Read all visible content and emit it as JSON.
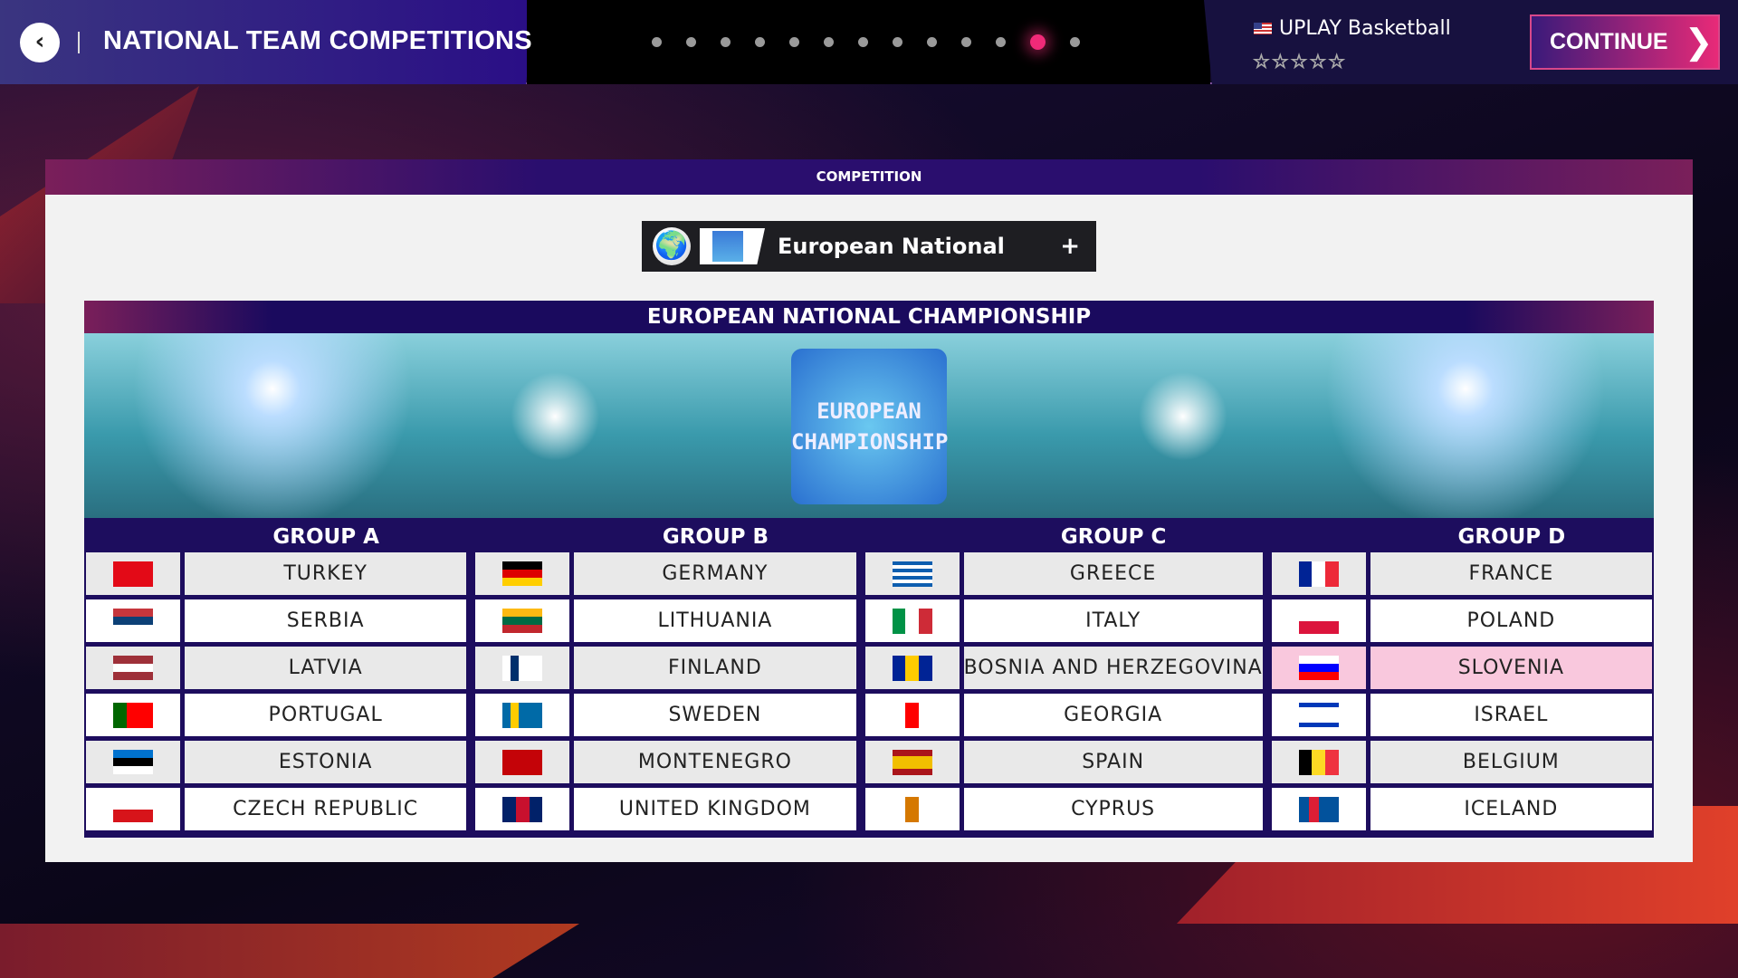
{
  "header": {
    "back_icon": "chevron-left-icon",
    "title": "NATIONAL TEAM COMPETITIONS",
    "steps_total": 13,
    "steps_active": 12,
    "profile": {
      "flag_icon": "us-flag-icon",
      "name": "UPLAY Basketball",
      "stars": "☆☆☆☆☆",
      "rating": 0
    },
    "continue_label": "CONTINUE",
    "continue_icon": "chevron-right-icon"
  },
  "panel": {
    "title": "COMPETITION",
    "selector": {
      "icon": "globe-icon",
      "label": "European National",
      "plus": "+"
    },
    "championship": {
      "title": "EUROPEAN NATIONAL CHAMPIONSHIP",
      "logo_line1": "EUROPEAN",
      "logo_line2": "CHAMPIONSHIP"
    },
    "groups": [
      {
        "title": "GROUP A",
        "teams": [
          {
            "name": "TURKEY",
            "flag": {
              "dir": "row",
              "colors": [
                "#e30a17"
              ]
            }
          },
          {
            "name": "SERBIA",
            "flag": {
              "dir": "column",
              "colors": [
                "#c6363c",
                "#0c4076",
                "#ffffff"
              ]
            }
          },
          {
            "name": "LATVIA",
            "flag": {
              "dir": "column",
              "colors": [
                "#9e3039",
                "#ffffff",
                "#9e3039"
              ]
            }
          },
          {
            "name": "PORTUGAL",
            "flag": {
              "dir": "row",
              "colors": [
                "#006600",
                "#ff0000",
                "#ff0000"
              ]
            }
          },
          {
            "name": "ESTONIA",
            "flag": {
              "dir": "column",
              "colors": [
                "#0072ce",
                "#000000",
                "#ffffff"
              ]
            }
          },
          {
            "name": "CZECH REPUBLIC",
            "flag": {
              "dir": "column",
              "colors": [
                "#ffffff",
                "#d7141a"
              ]
            }
          }
        ]
      },
      {
        "title": "GROUP B",
        "teams": [
          {
            "name": "GERMANY",
            "flag": {
              "dir": "column",
              "colors": [
                "#000000",
                "#dd0000",
                "#ffce00"
              ]
            }
          },
          {
            "name": "LITHUANIA",
            "flag": {
              "dir": "column",
              "colors": [
                "#fdb913",
                "#006a44",
                "#c1272d"
              ]
            }
          },
          {
            "name": "FINLAND",
            "flag": {
              "dir": "row",
              "colors": [
                "#ffffff",
                "#002f6c",
                "#ffffff",
                "#ffffff",
                "#ffffff"
              ]
            }
          },
          {
            "name": "SWEDEN",
            "flag": {
              "dir": "row",
              "colors": [
                "#006aa7",
                "#fecc00",
                "#006aa7",
                "#006aa7",
                "#006aa7"
              ]
            }
          },
          {
            "name": "MONTENEGRO",
            "flag": {
              "dir": "row",
              "colors": [
                "#c40308"
              ]
            }
          },
          {
            "name": "UNITED KINGDOM",
            "flag": {
              "dir": "row",
              "colors": [
                "#012169",
                "#c8102e",
                "#012169"
              ]
            }
          }
        ]
      },
      {
        "title": "GROUP C",
        "teams": [
          {
            "name": "GREECE",
            "flag": {
              "dir": "column",
              "colors": [
                "#0d5eaf",
                "#ffffff",
                "#0d5eaf",
                "#ffffff",
                "#0d5eaf",
                "#ffffff",
                "#0d5eaf"
              ]
            }
          },
          {
            "name": "ITALY",
            "flag": {
              "dir": "row",
              "colors": [
                "#009246",
                "#ffffff",
                "#ce2b37"
              ]
            }
          },
          {
            "name": "BOSNIA AND HERZEGOVINA",
            "flag": {
              "dir": "row",
              "colors": [
                "#002395",
                "#fecb00",
                "#002395"
              ]
            }
          },
          {
            "name": "GEORGIA",
            "flag": {
              "dir": "row",
              "colors": [
                "#ffffff",
                "#ff0000",
                "#ffffff"
              ]
            }
          },
          {
            "name": "SPAIN",
            "flag": {
              "dir": "column",
              "colors": [
                "#aa151b",
                "#f1bf00",
                "#f1bf00",
                "#aa151b"
              ]
            }
          },
          {
            "name": "CYPRUS",
            "flag": {
              "dir": "row",
              "colors": [
                "#ffffff",
                "#d57800",
                "#ffffff"
              ]
            }
          }
        ]
      },
      {
        "title": "GROUP D",
        "teams": [
          {
            "name": "FRANCE",
            "flag": {
              "dir": "row",
              "colors": [
                "#002395",
                "#ffffff",
                "#ed2939"
              ]
            }
          },
          {
            "name": "POLAND",
            "flag": {
              "dir": "column",
              "colors": [
                "#ffffff",
                "#dc143c"
              ]
            }
          },
          {
            "name": "SLOVENIA",
            "flag": {
              "dir": "column",
              "colors": [
                "#ffffff",
                "#0000ff",
                "#ff0000"
              ]
            },
            "selected": true
          },
          {
            "name": "ISRAEL",
            "flag": {
              "dir": "column",
              "colors": [
                "#0038b8",
                "#ffffff",
                "#ffffff",
                "#ffffff",
                "#0038b8"
              ]
            }
          },
          {
            "name": "BELGIUM",
            "flag": {
              "dir": "row",
              "colors": [
                "#000000",
                "#fdda24",
                "#ef3340"
              ]
            }
          },
          {
            "name": "ICELAND",
            "flag": {
              "dir": "row",
              "colors": [
                "#02529c",
                "#dc1e35",
                "#02529c",
                "#02529c"
              ]
            }
          }
        ]
      }
    ]
  },
  "colors": {
    "accent": "#f02a78",
    "table_bg": "#1d0d5e",
    "selected_row": "#f9c8dd"
  }
}
